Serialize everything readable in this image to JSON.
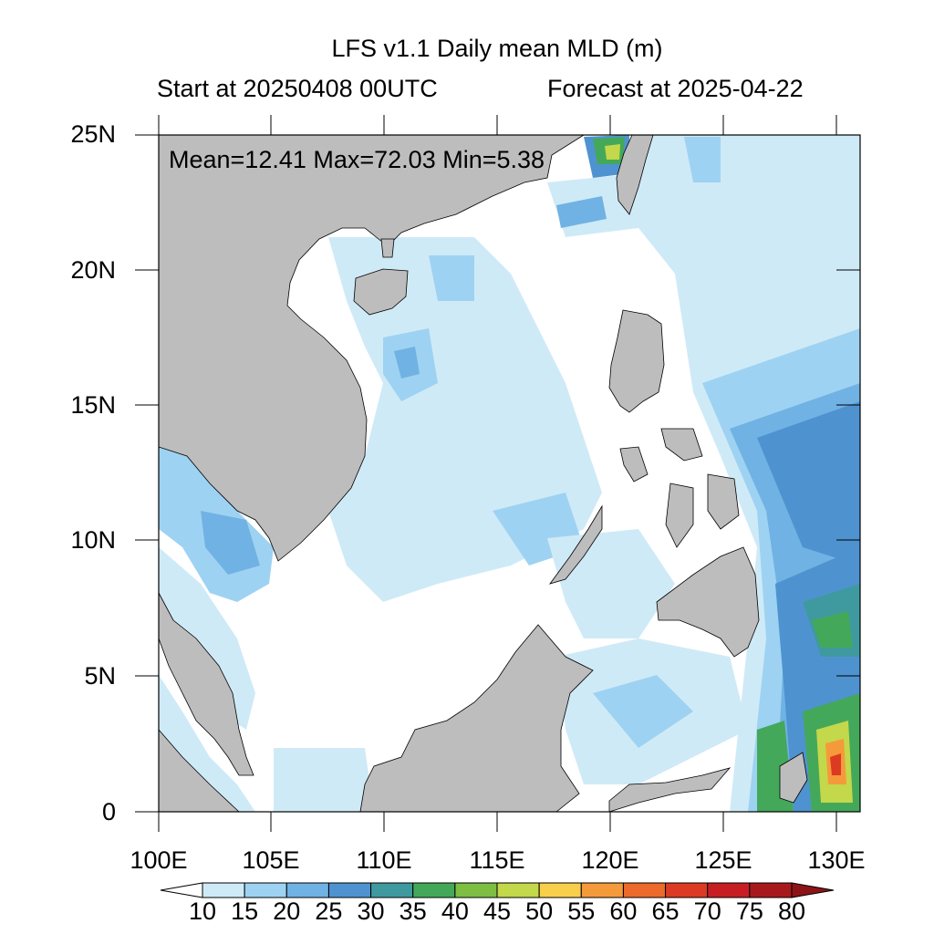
{
  "title": "LFS v1.1 Daily mean MLD (m)",
  "start_label": "Start at 20250408 00UTC",
  "forecast_label": "Forecast at 2025-04-22",
  "stats": "Mean=12.41  Max=72.03  Min=5.38",
  "map": {
    "x_ticks": [
      "100E",
      "105E",
      "110E",
      "115E",
      "120E",
      "125E",
      "130E"
    ],
    "y_ticks": [
      "25N",
      "20N",
      "15N",
      "10N",
      "5N",
      "0"
    ],
    "land_color": "#bdbdbd",
    "ocean_color": "#ffffff"
  },
  "colorbar": {
    "labels": [
      "10",
      "15",
      "20",
      "25",
      "30",
      "35",
      "40",
      "45",
      "50",
      "55",
      "60",
      "65",
      "70",
      "75",
      "80"
    ],
    "colors": [
      "#ffffff",
      "#cfeaf7",
      "#9ed2f2",
      "#70b2e3",
      "#4e93d0",
      "#3f9aa0",
      "#44a85a",
      "#7dbe43",
      "#c3d84a",
      "#f7cf4a",
      "#f59a3a",
      "#ec6a2a",
      "#dc3a23",
      "#c71e23",
      "#a8191c",
      "#8c1418"
    ]
  }
}
